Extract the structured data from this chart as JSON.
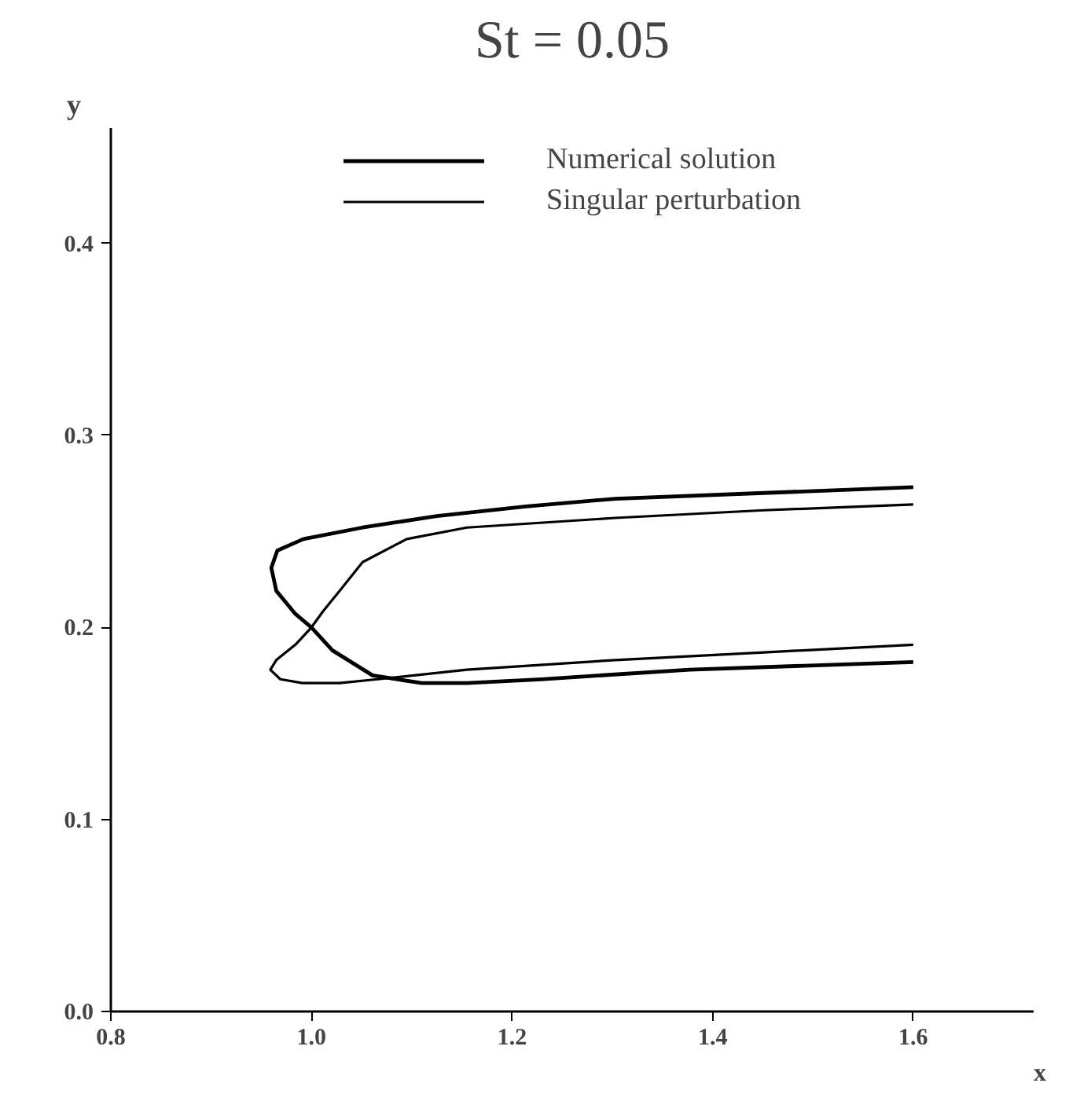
{
  "chart_data": {
    "type": "line",
    "title": "St = 0.05",
    "xlabel": "x",
    "ylabel": "y",
    "xlim": [
      0.8,
      1.72
    ],
    "ylim": [
      0,
      0.46
    ],
    "xticks": [
      0.8,
      {
        "value": 1.0,
        "label": "1.0"
      },
      1.2,
      1.4,
      1.6
    ],
    "yticks": [
      {
        "value": 0.0,
        "label": "0.0"
      },
      0.1,
      0.2,
      0.3,
      0.4
    ],
    "grid": false,
    "legend": "top",
    "line_style": "solid",
    "series": [
      {
        "name": "Numerical solution",
        "color": "#000000",
        "x": [
          1.6,
          1.451,
          1.303,
          1.214,
          1.125,
          1.051,
          0.992,
          0.966,
          0.96,
          0.965,
          0.984,
          1.0,
          1.021,
          1.061,
          1.11,
          1.155,
          1.229,
          1.377,
          1.6
        ],
        "values": [
          0.273,
          0.27,
          0.267,
          0.263,
          0.258,
          0.252,
          0.246,
          0.24,
          0.231,
          0.219,
          0.207,
          0.2,
          0.188,
          0.175,
          0.171,
          0.171,
          0.173,
          0.178,
          0.182
        ]
      },
      {
        "name": "Singular perturbation",
        "color": "#000000",
        "x": [
          1.6,
          1.451,
          1.303,
          1.155,
          1.095,
          1.051,
          1.028,
          1.011,
          1.0,
          0.984,
          0.965,
          0.959,
          0.969,
          0.991,
          1.028,
          1.066,
          1.155,
          1.303,
          1.451,
          1.6
        ],
        "values": [
          0.264,
          0.261,
          0.257,
          0.252,
          0.246,
          0.234,
          0.219,
          0.208,
          0.2,
          0.191,
          0.183,
          0.178,
          0.173,
          0.171,
          0.171,
          0.173,
          0.178,
          0.183,
          0.187,
          0.191
        ]
      }
    ]
  }
}
